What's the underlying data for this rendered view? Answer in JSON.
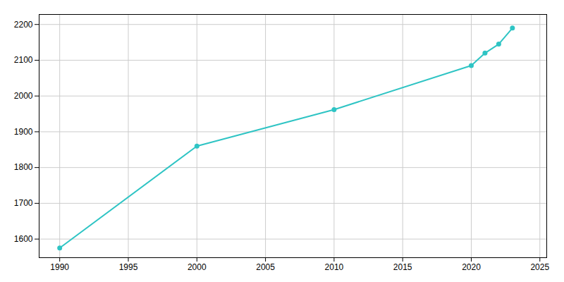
{
  "chart_data": {
    "type": "line",
    "x": [
      1990,
      2000,
      2010,
      2020,
      2021,
      2022,
      2023
    ],
    "values": [
      1575,
      1860,
      1962,
      2085,
      2120,
      2145,
      2190
    ],
    "color": "#2ec4c4",
    "marker": "circle",
    "xlim": [
      1988.5,
      2025.5
    ],
    "ylim": [
      1548,
      2228
    ],
    "xticks": [
      1990,
      1995,
      2000,
      2005,
      2010,
      2015,
      2020,
      2025
    ],
    "yticks": [
      1600,
      1700,
      1800,
      1900,
      2000,
      2100,
      2200
    ],
    "grid": true
  }
}
